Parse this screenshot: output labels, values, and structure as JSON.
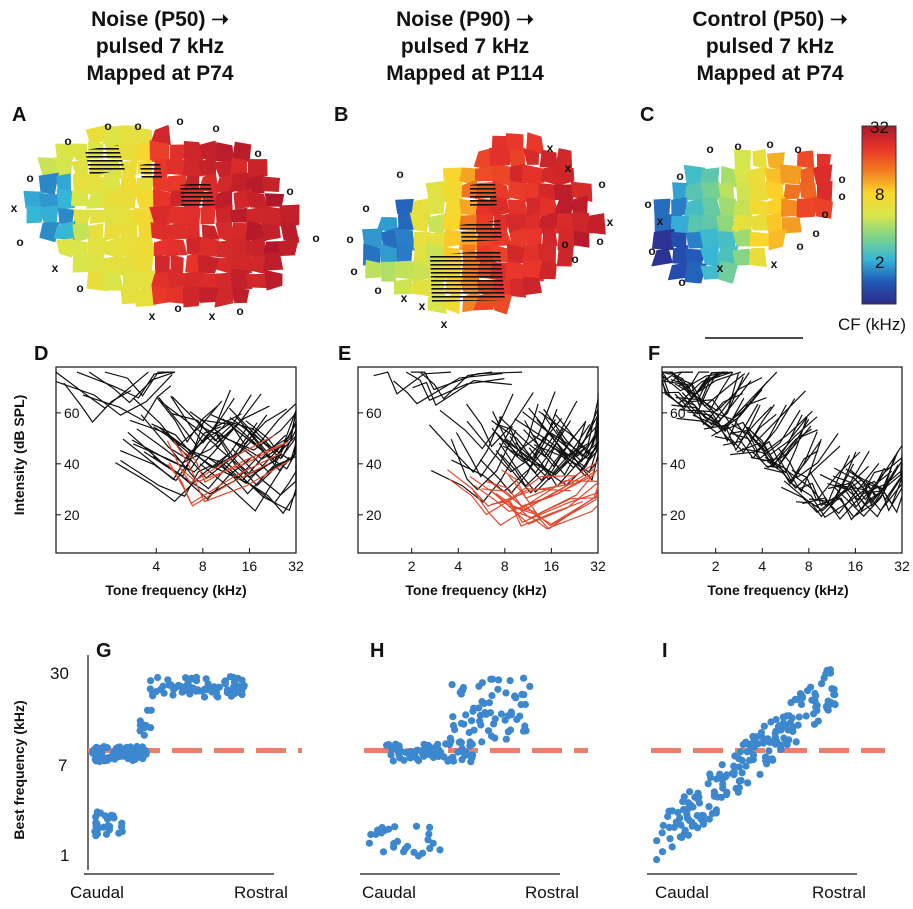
{
  "columns": [
    {
      "lines": [
        "Noise (P50) ➝",
        "pulsed 7 kHz",
        "Mapped at P74"
      ]
    },
    {
      "lines": [
        "Noise (P90) ➝",
        "pulsed 7 kHz",
        "Mapped at P114"
      ]
    },
    {
      "lines": [
        "Control (P50) ➝",
        "pulsed 7 kHz",
        "Mapped at P74"
      ]
    }
  ],
  "panel_labels": [
    "A",
    "B",
    "C",
    "D",
    "E",
    "F",
    "G",
    "H",
    "I"
  ],
  "maps": {
    "colorbar": {
      "ticks": [
        "32",
        "8",
        "2"
      ],
      "label": "CF (kHz)",
      "colors": [
        "#b0172a",
        "#e8332a",
        "#f27a1f",
        "#fbd52a",
        "#d8e64a",
        "#7cd38a",
        "#35b6d8",
        "#2258b8",
        "#2d2a8a"
      ]
    },
    "markers": {
      "unresponsive": "o",
      "non_auditory": "x"
    }
  },
  "chart_data": [
    {
      "type": "line",
      "panel": "D",
      "title": "",
      "xlabel": "Tone frequency (kHz)",
      "ylabel": "Intensity (dB SPL)",
      "xscale": "log2",
      "xlim": [
        0.9,
        32
      ],
      "ylim": [
        5,
        78
      ],
      "xticks": [
        "4",
        "8",
        "16",
        "32"
      ],
      "yticks": [
        "20",
        "40",
        "60"
      ],
      "series": [
        {
          "name": "",
          "color": "#000000"
        },
        {
          "name": "",
          "color": "#e0492e"
        }
      ]
    },
    {
      "type": "line",
      "panel": "E",
      "title": "",
      "xlabel": "Tone frequency (kHz)",
      "ylabel": "",
      "xscale": "log2",
      "xlim": [
        0.9,
        32
      ],
      "ylim": [
        5,
        78
      ],
      "xticks": [
        "2",
        "4",
        "8",
        "16",
        "32"
      ],
      "yticks": [
        "20",
        "40",
        "60"
      ],
      "series": [
        {
          "name": "",
          "color": "#000000"
        },
        {
          "name": "",
          "color": "#e0492e"
        }
      ]
    },
    {
      "type": "line",
      "panel": "F",
      "title": "",
      "xlabel": "Tone frequency (kHz)",
      "ylabel": "",
      "xscale": "log2",
      "xlim": [
        0.9,
        32
      ],
      "ylim": [
        5,
        78
      ],
      "xticks": [
        "2",
        "4",
        "8",
        "16",
        "32"
      ],
      "yticks": [
        "20",
        "40",
        "60"
      ],
      "series": [
        {
          "name": "",
          "color": "#000000"
        }
      ]
    },
    {
      "type": "scatter",
      "panel": "G",
      "xlabel": "",
      "xticks": [
        "Caudal",
        "Rostral"
      ],
      "ylabel": "Best frequency (kHz)",
      "yscale": "log",
      "ylim": [
        0.75,
        40
      ],
      "yticks": [
        "1",
        "7",
        "30"
      ],
      "reference_line": {
        "y": 7,
        "color": "#e9806c",
        "style": "dashed"
      },
      "point_color": "#3c87cd",
      "clusters": [
        {
          "x": [
            0.0,
            0.18
          ],
          "y": [
            1.3,
            2.1
          ],
          "n": 28
        },
        {
          "x": [
            0.0,
            0.32
          ],
          "y": [
            5.6,
            7.6
          ],
          "n": 80
        },
        {
          "x": [
            0.28,
            0.36
          ],
          "y": [
            9,
            16
          ],
          "n": 12
        },
        {
          "x": [
            0.34,
            0.9
          ],
          "y": [
            20,
            30
          ],
          "n": 80
        }
      ]
    },
    {
      "type": "scatter",
      "panel": "H",
      "xlabel": "",
      "xticks": [
        "Caudal",
        "Rostral"
      ],
      "ylabel": "",
      "yscale": "log",
      "ylim": [
        0.75,
        40
      ],
      "reference_line": {
        "y": 7,
        "color": "#e9806c",
        "style": "dashed"
      },
      "point_color": "#3c87cd",
      "clusters": [
        {
          "x": [
            0.0,
            0.42
          ],
          "y": [
            0.85,
            1.6
          ],
          "n": 26
        },
        {
          "x": [
            0.1,
            0.6
          ],
          "y": [
            5.6,
            8.0
          ],
          "n": 60
        },
        {
          "x": [
            0.45,
            0.9
          ],
          "y": [
            8,
            30
          ],
          "n": 70
        }
      ]
    },
    {
      "type": "scatter",
      "panel": "I",
      "xlabel": "",
      "xticks": [
        "Caudal",
        "Rostral"
      ],
      "ylabel": "",
      "yscale": "log",
      "ylim": [
        0.75,
        40
      ],
      "reference_line": {
        "y": 7,
        "color": "#e9806c",
        "style": "dashed"
      },
      "point_color": "#3c87cd",
      "clusters": [
        {
          "trend": "monotonic",
          "x": [
            0.0,
            0.95
          ],
          "y": [
            1.1,
            30
          ],
          "n": 190
        }
      ]
    }
  ]
}
